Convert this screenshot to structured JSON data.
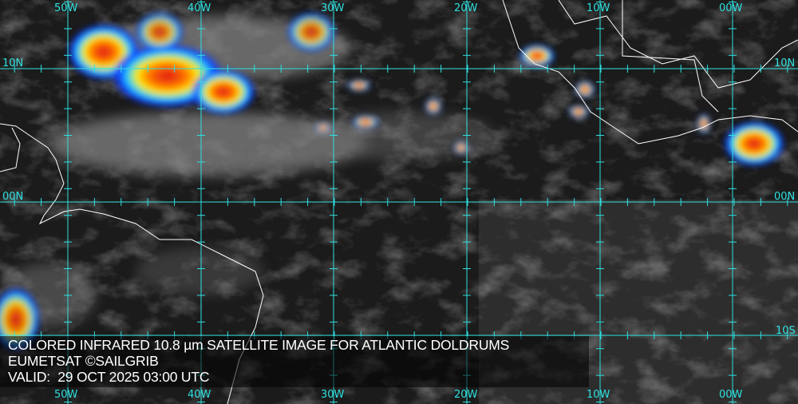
{
  "map": {
    "longitude_labels": [
      "50W",
      "40W",
      "30W",
      "20W",
      "10W",
      "00W"
    ],
    "latitude_labels_left": [
      "10N",
      "00N"
    ],
    "latitude_labels_right": [
      "10N",
      "00N",
      "10S"
    ],
    "grid_color": "#2fe0e0"
  },
  "caption": {
    "line1": "COLORED INFRARED 10.8 µm SATELLITE IMAGE FOR ATLANTIC DOLDRUMS",
    "line2": "EUMETSAT ©SAILGRIB",
    "line3": "VALID:  29 OCT 2025 03:00 UTC"
  }
}
